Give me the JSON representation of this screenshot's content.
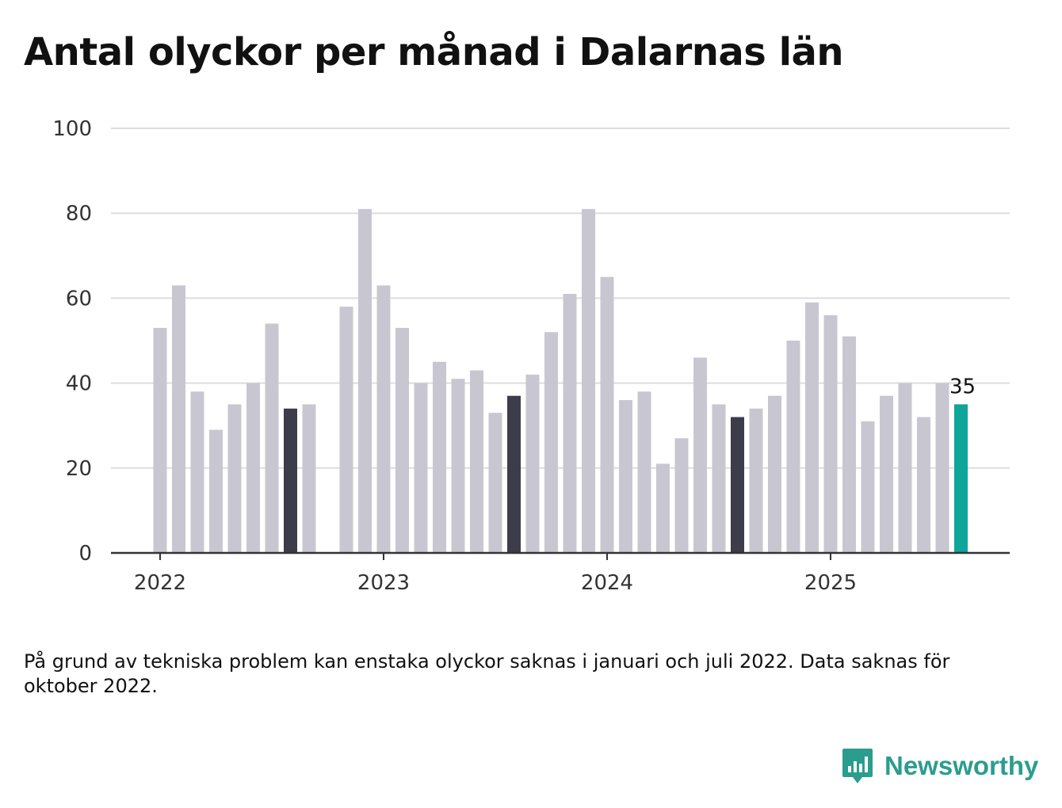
{
  "chart_data": {
    "type": "bar",
    "title": "Antal olyckor per månad i Dalarnas län",
    "ylim": [
      0,
      100
    ],
    "yticks": [
      0,
      20,
      40,
      60,
      80,
      100
    ],
    "x_tick_labels": [
      "2022",
      "2023",
      "2024",
      "2025"
    ],
    "grid": true,
    "months": [
      "2022-01",
      "2022-02",
      "2022-03",
      "2022-04",
      "2022-05",
      "2022-06",
      "2022-07",
      "2022-08",
      "2022-09",
      "2022-10",
      "2022-11",
      "2022-12",
      "2023-01",
      "2023-02",
      "2023-03",
      "2023-04",
      "2023-05",
      "2023-06",
      "2023-07",
      "2023-08",
      "2023-09",
      "2023-10",
      "2023-11",
      "2023-12",
      "2024-01",
      "2024-02",
      "2024-03",
      "2024-04",
      "2024-05",
      "2024-06",
      "2024-07",
      "2024-08",
      "2024-09",
      "2024-10",
      "2024-11",
      "2024-12",
      "2025-01",
      "2025-02",
      "2025-03",
      "2025-04",
      "2025-05",
      "2025-06",
      "2025-07",
      "2025-08"
    ],
    "values": [
      53,
      63,
      38,
      29,
      35,
      40,
      54,
      34,
      35,
      null,
      58,
      81,
      63,
      53,
      40,
      45,
      41,
      43,
      33,
      37,
      42,
      52,
      61,
      81,
      65,
      36,
      38,
      21,
      27,
      46,
      35,
      32,
      34,
      37,
      50,
      59,
      56,
      51,
      31,
      37,
      40,
      32,
      40,
      35
    ],
    "highlight_months": [
      "2022-08",
      "2023-08",
      "2024-08"
    ],
    "current_month": "2025-08",
    "last_value_label": "35",
    "colors": {
      "default": "#c8c7d1",
      "highlight": "#3d3c4a",
      "current": "#0ea59a",
      "grid": "#dddddd",
      "axis": "#333333"
    }
  },
  "footnote": "På grund av tekniska problem kan enstaka olyckor saknas i januari och juli 2022. Data saknas för oktober 2022.",
  "brand": {
    "name": "Newsworthy",
    "icon": "newsworthy-logo-icon",
    "color": "#2a9d8f"
  }
}
